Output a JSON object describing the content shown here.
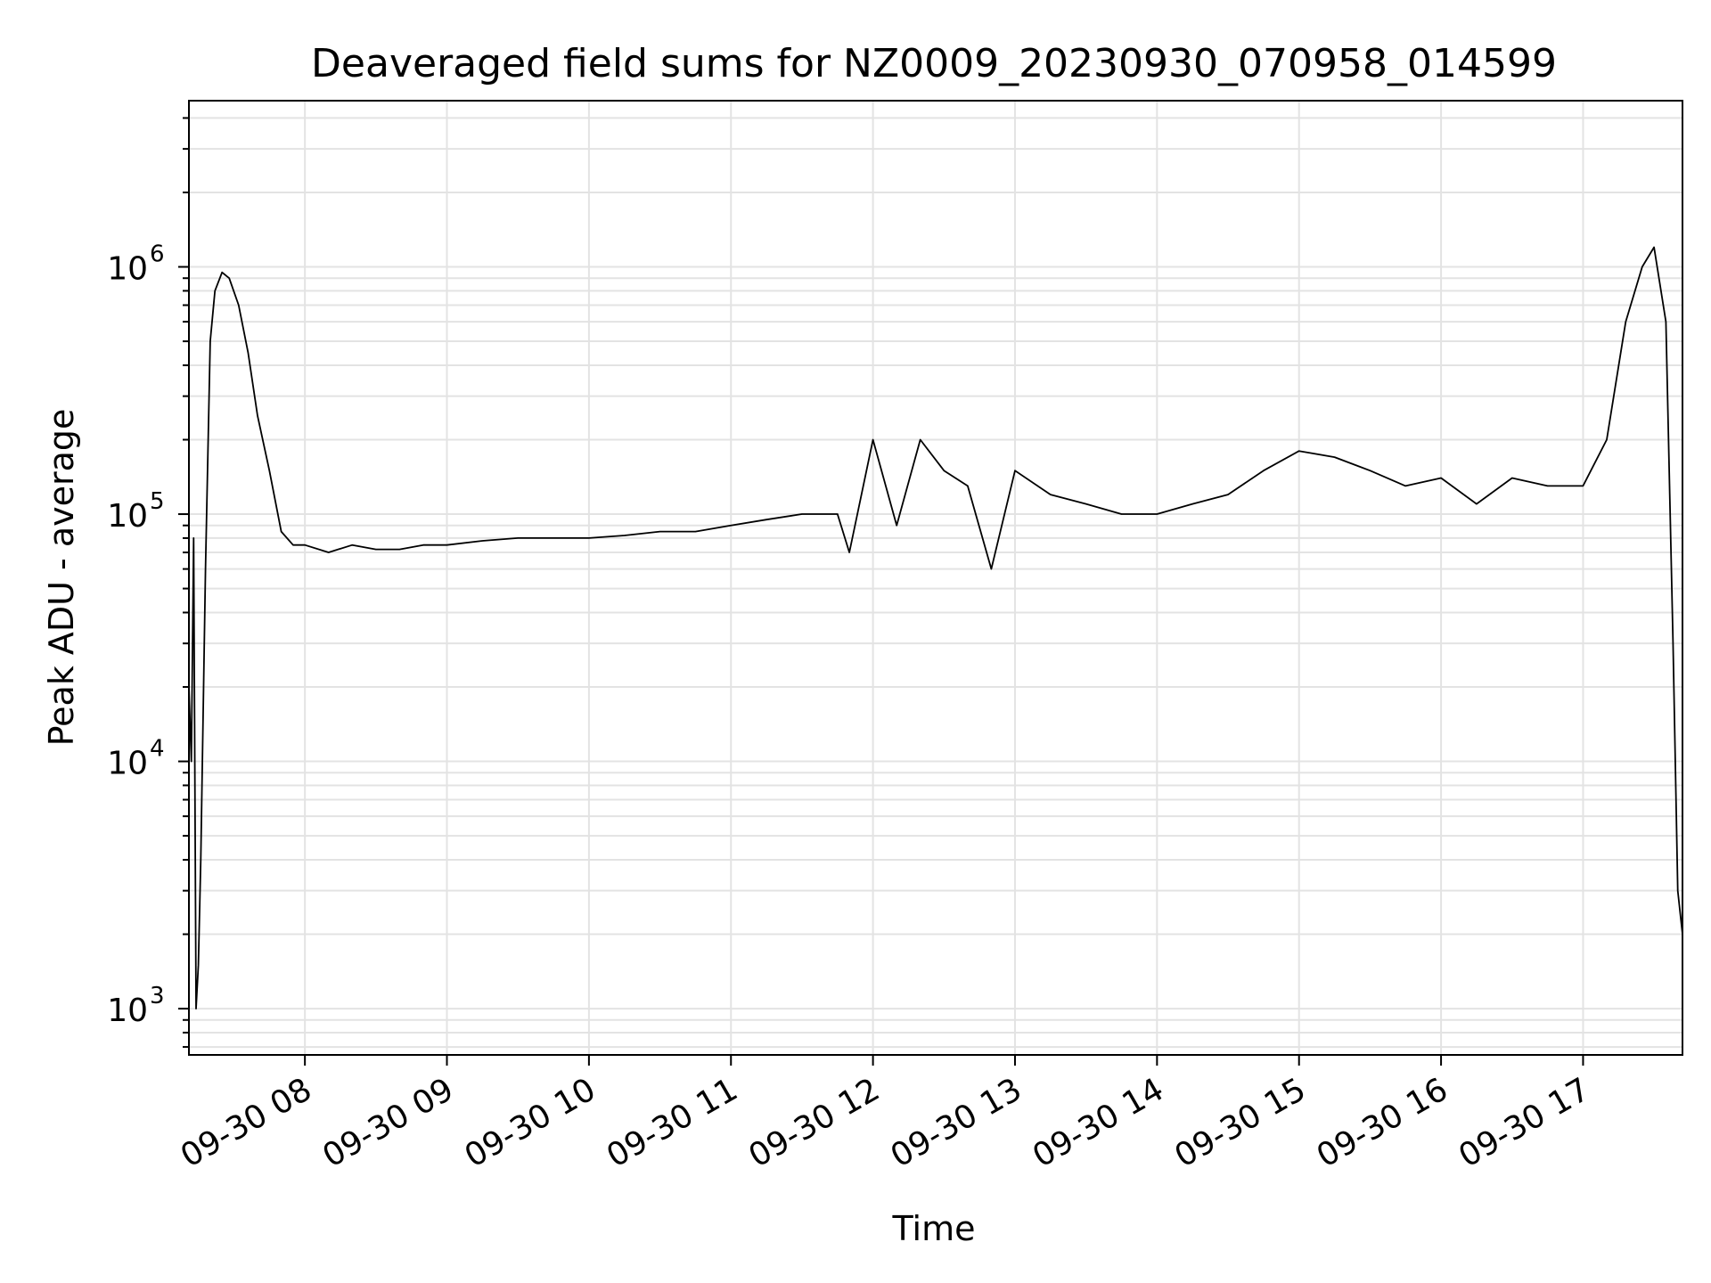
{
  "chart_data": {
    "type": "line",
    "title": "Deaveraged field sums for NZ0009_20230930_070958_014599",
    "xlabel": "Time",
    "ylabel": "Peak ADU - average",
    "y_scale": "log",
    "ylim": [
      650,
      4700000
    ],
    "xlim": [
      "2023-09-30 07:11",
      "2023-09-30 17:42"
    ],
    "x_ticks": [
      "09-30 08",
      "09-30 09",
      "09-30 10",
      "09-30 11",
      "09-30 12",
      "09-30 13",
      "09-30 14",
      "09-30 15",
      "09-30 16",
      "09-30 17"
    ],
    "y_ticks": [
      {
        "base": "10",
        "exp": "3",
        "value": 1000
      },
      {
        "base": "10",
        "exp": "4",
        "value": 10000
      },
      {
        "base": "10",
        "exp": "5",
        "value": 100000
      },
      {
        "base": "10",
        "exp": "6",
        "value": 1000000
      }
    ],
    "grid": true,
    "line_color": "#000000",
    "series": [
      {
        "x": [
          "2023-09-30 07:11",
          "2023-09-30 07:12",
          "2023-09-30 07:13",
          "2023-09-30 07:14",
          "2023-09-30 07:15",
          "2023-09-30 07:16",
          "2023-09-30 07:18",
          "2023-09-30 07:20",
          "2023-09-30 07:22",
          "2023-09-30 07:25",
          "2023-09-30 07:28",
          "2023-09-30 07:32",
          "2023-09-30 07:36",
          "2023-09-30 07:40",
          "2023-09-30 07:45",
          "2023-09-30 07:50",
          "2023-09-30 07:55",
          "2023-09-30 08:00",
          "2023-09-30 08:10",
          "2023-09-30 08:20",
          "2023-09-30 08:30",
          "2023-09-30 08:40",
          "2023-09-30 08:50",
          "2023-09-30 09:00",
          "2023-09-30 09:15",
          "2023-09-30 09:30",
          "2023-09-30 09:45",
          "2023-09-30 10:00",
          "2023-09-30 10:15",
          "2023-09-30 10:30",
          "2023-09-30 10:45",
          "2023-09-30 11:00",
          "2023-09-30 11:15",
          "2023-09-30 11:30",
          "2023-09-30 11:45",
          "2023-09-30 11:50",
          "2023-09-30 12:00",
          "2023-09-30 12:10",
          "2023-09-30 12:20",
          "2023-09-30 12:30",
          "2023-09-30 12:40",
          "2023-09-30 12:50",
          "2023-09-30 13:00",
          "2023-09-30 13:15",
          "2023-09-30 13:30",
          "2023-09-30 13:45",
          "2023-09-30 14:00",
          "2023-09-30 14:15",
          "2023-09-30 14:30",
          "2023-09-30 14:45",
          "2023-09-30 15:00",
          "2023-09-30 15:15",
          "2023-09-30 15:30",
          "2023-09-30 15:45",
          "2023-09-30 16:00",
          "2023-09-30 16:15",
          "2023-09-30 16:30",
          "2023-09-30 16:45",
          "2023-09-30 17:00",
          "2023-09-30 17:10",
          "2023-09-30 17:18",
          "2023-09-30 17:25",
          "2023-09-30 17:30",
          "2023-09-30 17:35",
          "2023-09-30 17:38",
          "2023-09-30 17:40",
          "2023-09-30 17:42"
        ],
        "y": [
          20000,
          10000,
          80000,
          1000,
          1500,
          4000,
          60000,
          500000,
          800000,
          950000,
          900000,
          700000,
          450000,
          250000,
          150000,
          85000,
          75000,
          75000,
          70000,
          75000,
          72000,
          72000,
          75000,
          75000,
          78000,
          80000,
          80000,
          80000,
          82000,
          85000,
          85000,
          90000,
          95000,
          100000,
          100000,
          70000,
          200000,
          90000,
          200000,
          150000,
          130000,
          60000,
          150000,
          120000,
          110000,
          100000,
          100000,
          110000,
          120000,
          150000,
          180000,
          170000,
          150000,
          130000,
          140000,
          110000,
          140000,
          130000,
          130000,
          200000,
          600000,
          1000000,
          1200000,
          600000,
          30000,
          3000,
          2000
        ]
      }
    ]
  }
}
